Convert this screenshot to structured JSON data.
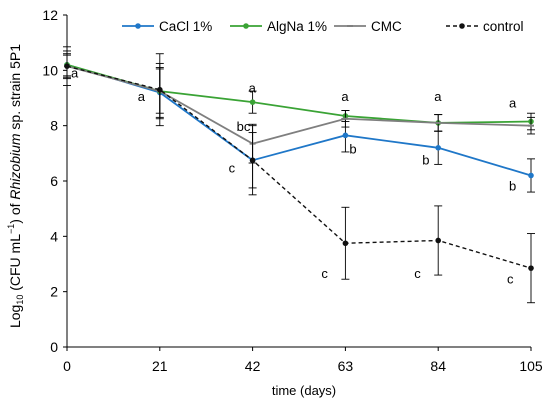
{
  "chart_data": {
    "type": "line",
    "xlabel": "time (days)",
    "ylabel": {
      "prefix": "Log",
      "prefix_sub": "10",
      "mid": " (CFU mL",
      "mid_sup": "−1",
      "after_sup": ") of ",
      "italic": "Rhizobium",
      "suffix": " sp. strain 5P1"
    },
    "x": [
      0,
      21,
      42,
      63,
      84,
      105
    ],
    "xticks": [
      "0",
      "21",
      "42",
      "63",
      "84",
      "105"
    ],
    "ylim": [
      0,
      12
    ],
    "yticks": [
      "0",
      "2",
      "4",
      "6",
      "8",
      "10",
      "12"
    ],
    "grid": false,
    "legend_position": "top",
    "series": [
      {
        "name": "CaCl 1%",
        "color": "#1f77c8",
        "dashed": false,
        "marker": "circle",
        "values": [
          10.2,
          9.2,
          6.75,
          7.65,
          7.2,
          6.2
        ],
        "errors": [
          0.5,
          0.9,
          1.0,
          0.6,
          0.6,
          0.6
        ],
        "labels": [
          "a",
          "a",
          "c",
          "b",
          "b",
          "b"
        ]
      },
      {
        "name": "AlgNa 1%",
        "color": "#3aa335",
        "dashed": false,
        "marker": "circle",
        "values": [
          10.2,
          9.25,
          8.85,
          8.35,
          8.1,
          8.15
        ],
        "errors": [
          0.4,
          0.8,
          0.4,
          0.2,
          0.3,
          0.3
        ],
        "labels": [
          "a",
          "a",
          "a",
          "a",
          "a",
          "a"
        ]
      },
      {
        "name": "CMC",
        "color": "#7f7f7f",
        "dashed": false,
        "marker": "dash",
        "values": [
          10.15,
          9.25,
          7.35,
          8.25,
          8.1,
          8.0
        ],
        "errors": [
          0.4,
          1.0,
          0.7,
          0.3,
          0.3,
          0.3
        ],
        "labels": [
          "a",
          "a",
          "bc",
          "a",
          "a",
          "a"
        ]
      },
      {
        "name": "control",
        "color": "#111111",
        "dashed": true,
        "marker": "circle",
        "values": [
          10.15,
          9.3,
          6.75,
          3.75,
          3.85,
          2.85
        ],
        "errors": [
          0.7,
          1.3,
          1.25,
          1.3,
          1.25,
          1.25
        ],
        "labels": [
          "a",
          "a",
          "c",
          "c",
          "c",
          "c"
        ]
      }
    ],
    "point_labels": [
      {
        "text": "a",
        "x": 0,
        "y": 9.75,
        "dx": 4,
        "dy": 0
      },
      {
        "text": "a",
        "x": 21,
        "y": 8.9,
        "dx": -22,
        "dy": 0
      },
      {
        "text": "bc",
        "x": 42,
        "y": 7.8,
        "dx": -16,
        "dy": 0
      },
      {
        "text": "a",
        "x": 42,
        "y": 9.2,
        "dx": -4,
        "dy": 0
      },
      {
        "text": "c",
        "x": 42,
        "y": 6.3,
        "dx": -24,
        "dy": 0
      },
      {
        "text": "a",
        "x": 63,
        "y": 8.9,
        "dx": -4,
        "dy": 0
      },
      {
        "text": "b",
        "x": 63,
        "y": 7.0,
        "dx": 4,
        "dy": 0
      },
      {
        "text": "c",
        "x": 63,
        "y": 2.5,
        "dx": -24,
        "dy": 0
      },
      {
        "text": "a",
        "x": 84,
        "y": 8.9,
        "dx": -4,
        "dy": 0
      },
      {
        "text": "b",
        "x": 84,
        "y": 6.6,
        "dx": -16,
        "dy": 0
      },
      {
        "text": "c",
        "x": 84,
        "y": 2.5,
        "dx": -24,
        "dy": 0
      },
      {
        "text": "a",
        "x": 105,
        "y": 8.65,
        "dx": -22,
        "dy": 0
      },
      {
        "text": "b",
        "x": 105,
        "y": 5.65,
        "dx": -22,
        "dy": 0
      },
      {
        "text": "c",
        "x": 105,
        "y": 2.3,
        "dx": -24,
        "dy": 0
      }
    ]
  }
}
